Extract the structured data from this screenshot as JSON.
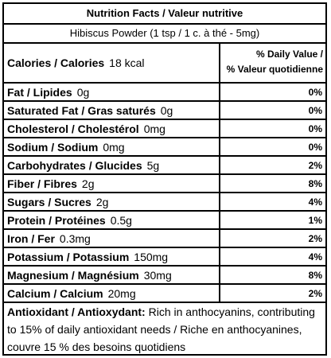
{
  "header": {
    "title": "Nutrition Facts / Valeur nutritive",
    "product_name": "Hibiscus Powder",
    "serving": "(1 tsp / 1 c. à thé - 5mg)"
  },
  "daily_value_heading": {
    "line1": "% Daily Value /",
    "line2": "% Valeur quotidienne"
  },
  "calories": {
    "label": "Calories / Calories",
    "value": "18 kcal"
  },
  "nutrients": [
    {
      "label": "Fat / Lipides",
      "amount": "0g",
      "dv": "0%"
    },
    {
      "label": "Saturated Fat / Gras saturés",
      "amount": "0g",
      "dv": "0%"
    },
    {
      "label": "Cholesterol / Cholestérol",
      "amount": "0mg",
      "dv": "0%"
    },
    {
      "label": "Sodium / Sodium",
      "amount": "0mg",
      "dv": "0%"
    },
    {
      "label": "Carbohydrates / Glucides",
      "amount": "5g",
      "dv": "2%"
    },
    {
      "label": "Fiber / Fibres",
      "amount": "2g",
      "dv": "8%"
    },
    {
      "label": "Sugars / Sucres",
      "amount": "2g",
      "dv": "4%"
    },
    {
      "label": "Protein / Protéines",
      "amount": "0.5g",
      "dv": "1%"
    },
    {
      "label": "Iron / Fer",
      "amount": "0.3mg",
      "dv": "2%"
    },
    {
      "label": "Potassium / Potassium",
      "amount": "150mg",
      "dv": "4%"
    },
    {
      "label": "Magnesium / Magnésium",
      "amount": "30mg",
      "dv": "8%"
    },
    {
      "label": "Calcium / Calcium",
      "amount": "20mg",
      "dv": "2%"
    }
  ],
  "footnote": {
    "label": "Antioxidant / Antioxydant:",
    "text": "Rich in anthocyanins, contributing to 15% of daily antioxidant needs / Riche en anthocyanines, couvre 15 % des besoins quotidiens"
  }
}
